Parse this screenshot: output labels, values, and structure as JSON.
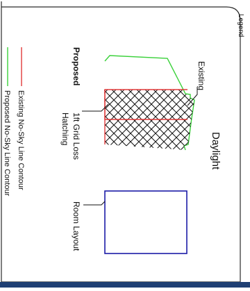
{
  "legend": {
    "title": "Legend",
    "heading": "Daylight",
    "labels": {
      "existing": "Existing",
      "proposed": "Proposed",
      "grid_loss_line1": "1ft Grid Loss",
      "grid_loss_line2": "Hatching",
      "room_layout": "Room Layout"
    },
    "key": [
      {
        "label": "Existing No-Sky Line Contour",
        "color": "#e03a3a"
      },
      {
        "label": "Proposed No-Sky Line Contour",
        "color": "#3ad13a"
      }
    ]
  },
  "colors": {
    "existing": "#e03a3a",
    "proposed": "#3ad13a",
    "room": "#1a1aa6",
    "hatch": "#111111",
    "footer_bar": "#1f3f73"
  }
}
